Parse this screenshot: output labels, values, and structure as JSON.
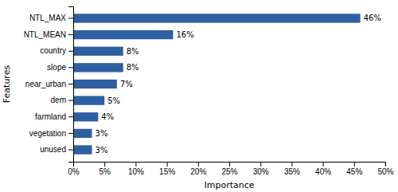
{
  "chart_data": {
    "type": "bar",
    "orientation": "horizontal",
    "categories": [
      "unused",
      "vegetation",
      "farmland",
      "dem",
      "near_urban",
      "slope",
      "country",
      "NTL_MEAN",
      "NTL_MAX"
    ],
    "values": [
      0.03,
      0.03,
      0.04,
      0.05,
      0.07,
      0.08,
      0.08,
      0.16,
      0.46
    ],
    "value_labels": [
      "3%",
      "3%",
      "4%",
      "5%",
      "7%",
      "8%",
      "8%",
      "16%",
      "46%"
    ],
    "data_labels": true,
    "color": "#2E5FA3",
    "xlabel": "Importance",
    "ylabel": "Features",
    "xlim": [
      0,
      0.5
    ],
    "xticks": [
      {
        "value": 0.0,
        "label": "0%"
      },
      {
        "value": 0.05,
        "label": "5%"
      },
      {
        "value": 0.1,
        "label": "10%"
      },
      {
        "value": 0.15,
        "label": "15%"
      },
      {
        "value": 0.2,
        "label": "20%"
      },
      {
        "value": 0.25,
        "label": "25%"
      },
      {
        "value": 0.3,
        "label": "30%"
      },
      {
        "value": 0.35,
        "label": "35%"
      },
      {
        "value": 0.4,
        "label": "40%"
      },
      {
        "value": 0.45,
        "label": "45%"
      },
      {
        "value": 0.5,
        "label": "50%"
      }
    ],
    "grid": false
  }
}
